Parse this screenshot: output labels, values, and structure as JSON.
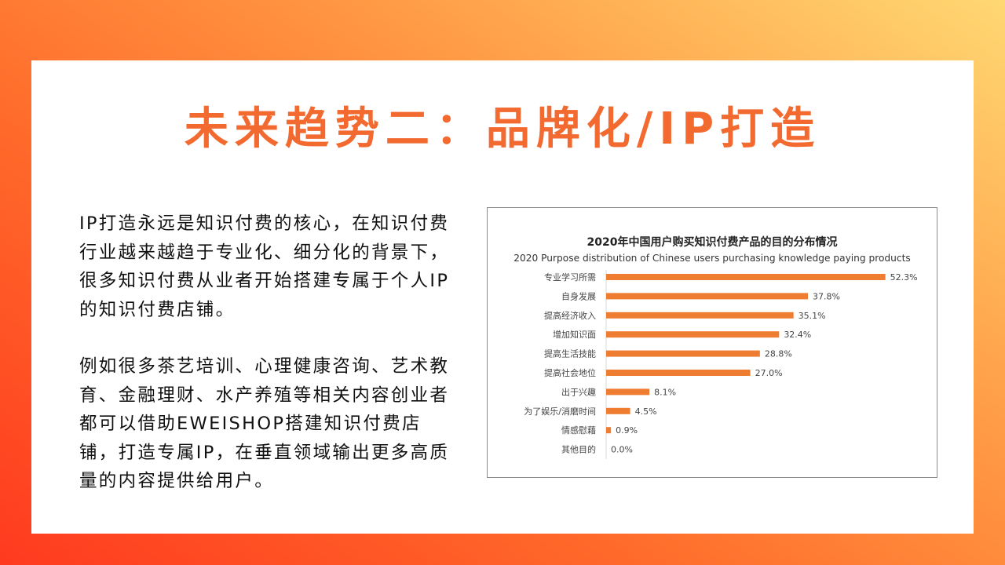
{
  "slide": {
    "title": "未来趋势二：品牌化/IP打造",
    "paragraphs": [
      "IP打造永远是知识付费的核心，在知识付费行业越来越趋于专业化、细分化的背景下，很多知识付费从业者开始搭建专属于个人IP的知识付费店铺。",
      "例如很多茶艺培训、心理健康咨询、艺术教育、金融理财、水产养殖等相关内容创业者都可以借助EWEISHOP搭建知识付费店铺，打造专属IP，在垂直领域输出更多高质量的内容提供给用户。"
    ]
  },
  "colors": {
    "accent": "#f26a30",
    "bar": "#ee7d31",
    "text": "#111111"
  },
  "chart_data": {
    "type": "bar",
    "orientation": "horizontal",
    "title": "2020年中国用户购买知识付费产品的目的分布情况",
    "subtitle": "2020 Purpose distribution of Chinese users purchasing knowledge paying products",
    "categories": [
      "专业学习所需",
      "自身发展",
      "提高经济收入",
      "增加知识面",
      "提高生活技能",
      "提高社会地位",
      "出于兴趣",
      "为了娱乐/消磨时间",
      "情感慰藉",
      "其他目的"
    ],
    "values": [
      52.3,
      37.8,
      35.1,
      32.4,
      28.8,
      27.0,
      8.1,
      4.5,
      0.9,
      0.0
    ],
    "labels": [
      "52.3%",
      "37.8%",
      "35.1%",
      "32.4%",
      "28.8%",
      "27.0%",
      "8.1%",
      "4.5%",
      "0.9%",
      "0.0%"
    ],
    "xlim": [
      0,
      55
    ],
    "grid": false,
    "legend": "none"
  }
}
